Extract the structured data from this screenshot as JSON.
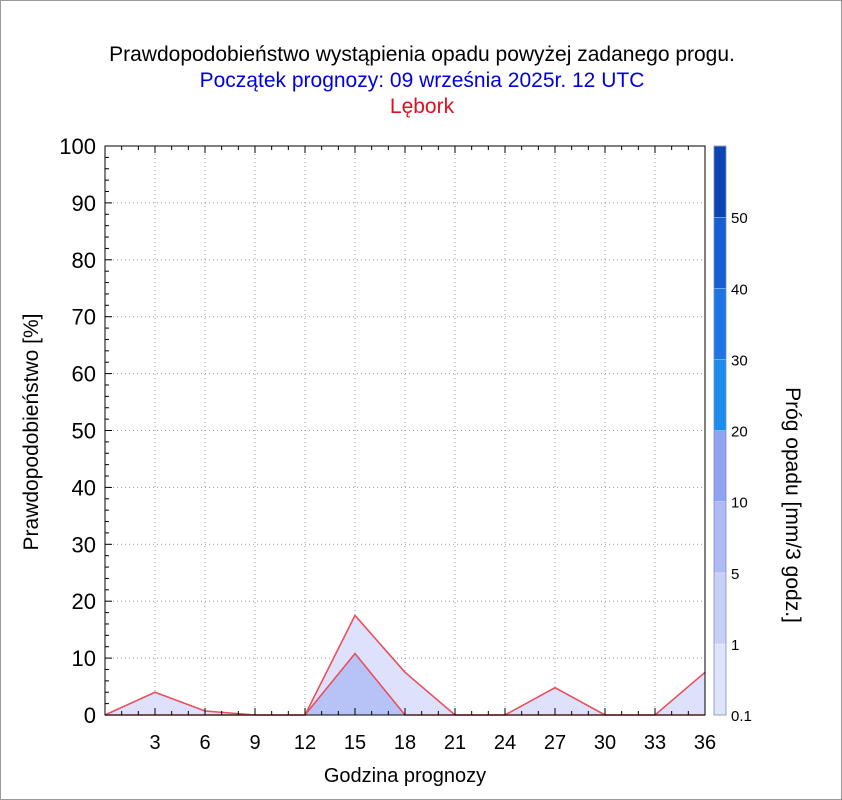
{
  "header": {
    "title": "Prawdopodobieństwo wystąpienia opadu powyżej zadanego progu.",
    "subtitle": "Początek prognozy: 09 września 2025r. 12 UTC",
    "location": "Lębork"
  },
  "colors": {
    "title": "#000000",
    "subtitle": "#0000e0",
    "location": "#e01020",
    "line": "#e8505a"
  },
  "chart_data": {
    "type": "area",
    "xlabel": "Godzina prognozy",
    "ylabel": "Prawdopodobieństwo [%]",
    "colorbar_label": "Próg opadu [mm/3 godz.]",
    "xlim": [
      0,
      36
    ],
    "ylim": [
      0,
      100
    ],
    "x_ticks": [
      3,
      6,
      9,
      12,
      15,
      18,
      21,
      24,
      27,
      30,
      33,
      36
    ],
    "y_ticks": [
      0,
      10,
      20,
      30,
      40,
      50,
      60,
      70,
      80,
      90,
      100
    ],
    "grid": true,
    "x": [
      0,
      3,
      6,
      9,
      12,
      15,
      18,
      21,
      24,
      27,
      30,
      33,
      36
    ],
    "series": [
      {
        "threshold": 0.1,
        "fill": "#dde1fb",
        "values": [
          0,
          4,
          0.7,
          0,
          0,
          17.5,
          7.5,
          0,
          0,
          4.8,
          0,
          0,
          7.5
        ]
      },
      {
        "threshold": 1,
        "fill": "#b7c3f6",
        "values": [
          0,
          0,
          0,
          0,
          0,
          10.8,
          0,
          0,
          0,
          0,
          0,
          0,
          0
        ]
      }
    ],
    "colorbar": {
      "labels": [
        "0.1",
        "1",
        "5",
        "10",
        "20",
        "30",
        "40",
        "50"
      ],
      "label_values": [
        0.1,
        1,
        5,
        10,
        20,
        30,
        40,
        50
      ],
      "bands": [
        {
          "from": 0.1,
          "to": 1,
          "color": "#dfe3fc"
        },
        {
          "from": 1,
          "to": 5,
          "color": "#c8d0f9"
        },
        {
          "from": 5,
          "to": 10,
          "color": "#adbaf5"
        },
        {
          "from": 10,
          "to": 20,
          "color": "#8ea3f2"
        },
        {
          "from": 20,
          "to": 30,
          "color": "#1a8cf0"
        },
        {
          "from": 30,
          "to": 40,
          "color": "#1f74e4"
        },
        {
          "from": 40,
          "to": 50,
          "color": "#155fd2"
        },
        {
          "from": 50,
          "to": 60,
          "color": "#0b45b4"
        }
      ]
    }
  }
}
